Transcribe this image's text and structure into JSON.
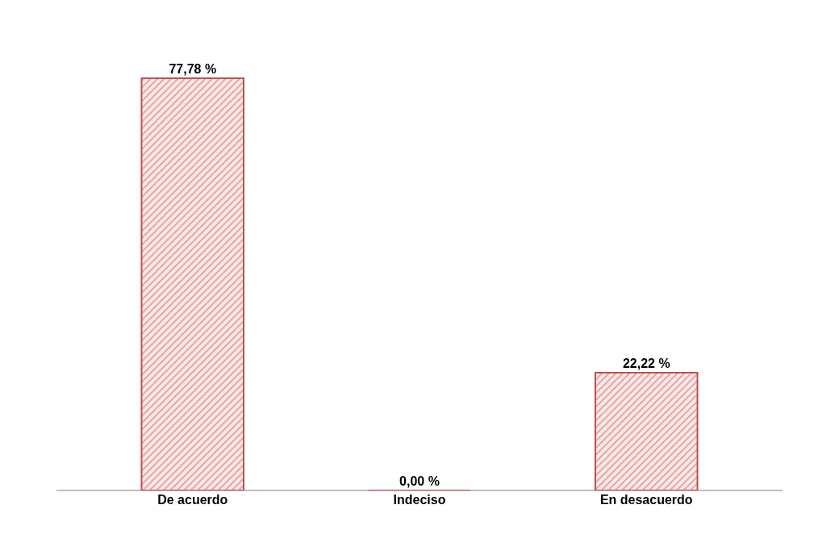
{
  "chart_data": {
    "type": "bar",
    "categories": [
      "De acuerdo",
      "Indeciso",
      "En desacuerdo"
    ],
    "values": [
      77.78,
      0.0,
      22.22
    ],
    "value_labels": [
      "77,78 %",
      "0,00 %",
      "22,22 %"
    ],
    "color": "#c0504d",
    "legend": false
  }
}
